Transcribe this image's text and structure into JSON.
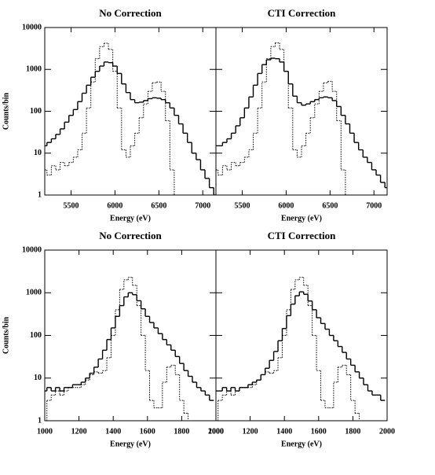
{
  "chart_data": [
    {
      "type": "line",
      "step": true,
      "log_y": true,
      "title": "No Correction",
      "xlabel": "Energy (eV)",
      "ylabel": "Counts/bin",
      "ytick_labels": true,
      "xlim": [
        5200,
        7150
      ],
      "xticks": [
        5500,
        6000,
        6500,
        7000
      ],
      "ylim": [
        1,
        10000
      ],
      "yticks": [
        1,
        10,
        100,
        1000,
        10000
      ],
      "x": [
        5200,
        5250,
        5300,
        5350,
        5400,
        5450,
        5500,
        5550,
        5600,
        5650,
        5700,
        5750,
        5800,
        5850,
        5900,
        5950,
        6000,
        6050,
        6100,
        6150,
        6200,
        6250,
        6300,
        6350,
        6400,
        6450,
        6500,
        6550,
        6600,
        6650,
        6700,
        6750,
        6800,
        6850,
        6900,
        6950,
        7000,
        7050,
        7100,
        7150
      ],
      "series": [
        {
          "color": "#000000",
          "dash": "solid",
          "values": [
            15,
            18,
            22,
            28,
            38,
            55,
            80,
            110,
            170,
            270,
            420,
            650,
            900,
            1200,
            1500,
            1450,
            1200,
            800,
            450,
            280,
            190,
            160,
            165,
            180,
            200,
            210,
            205,
            190,
            160,
            120,
            80,
            50,
            30,
            18,
            10,
            7,
            4,
            2.5,
            1.5,
            1
          ]
        },
        {
          "color": "#000000",
          "dash": "dotted",
          "values": [
            4,
            3,
            5,
            4,
            6,
            5,
            6,
            8,
            12,
            30,
            120,
            500,
            1800,
            3500,
            4200,
            3000,
            900,
            120,
            12,
            8,
            15,
            30,
            70,
            150,
            300,
            480,
            500,
            300,
            60,
            4,
            1,
            null,
            null,
            null,
            null,
            null,
            null,
            null,
            null,
            null
          ]
        }
      ]
    },
    {
      "type": "line",
      "step": true,
      "log_y": true,
      "title": "CTI Correction",
      "xlabel": "Energy (eV)",
      "ytick_labels": false,
      "xlim": [
        5200,
        7150
      ],
      "xticks": [
        5500,
        6000,
        6500,
        7000
      ],
      "ylim": [
        1,
        10000
      ],
      "yticks": [
        1,
        10,
        100,
        1000,
        10000
      ],
      "x": [
        5200,
        5250,
        5300,
        5350,
        5400,
        5450,
        5500,
        5550,
        5600,
        5650,
        5700,
        5750,
        5800,
        5850,
        5900,
        5950,
        6000,
        6050,
        6100,
        6150,
        6200,
        6250,
        6300,
        6350,
        6400,
        6450,
        6500,
        6550,
        6600,
        6650,
        6700,
        6750,
        6800,
        6850,
        6900,
        6950,
        7000,
        7050,
        7100,
        7150
      ],
      "series": [
        {
          "color": "#000000",
          "dash": "solid",
          "values": [
            15,
            15,
            18,
            22,
            30,
            45,
            70,
            120,
            220,
            420,
            800,
            1300,
            1700,
            1850,
            1800,
            1500,
            900,
            450,
            230,
            160,
            140,
            150,
            170,
            190,
            210,
            220,
            210,
            180,
            130,
            80,
            50,
            30,
            18,
            12,
            8,
            6,
            4,
            3,
            2,
            1.5
          ]
        },
        {
          "color": "#000000",
          "dash": "dotted",
          "values": [
            4,
            3,
            5,
            4,
            6,
            5,
            6,
            8,
            12,
            30,
            120,
            500,
            1800,
            3500,
            4300,
            3000,
            900,
            120,
            12,
            8,
            15,
            30,
            70,
            150,
            300,
            480,
            520,
            300,
            60,
            4,
            1,
            null,
            null,
            null,
            null,
            null,
            null,
            null,
            null,
            null
          ]
        }
      ]
    },
    {
      "type": "line",
      "step": true,
      "log_y": true,
      "title": "No Correction",
      "xlabel": "Energy (eV)",
      "ylabel": "Counts/bin",
      "ytick_labels": true,
      "xlim": [
        1000,
        2000
      ],
      "xticks": [
        1000,
        1200,
        1400,
        1600,
        1800,
        2000
      ],
      "ylim": [
        1,
        10000
      ],
      "yticks": [
        1,
        10,
        100,
        1000,
        10000
      ],
      "x": [
        1000,
        1025,
        1050,
        1075,
        1100,
        1125,
        1150,
        1175,
        1200,
        1225,
        1250,
        1275,
        1300,
        1325,
        1350,
        1375,
        1400,
        1425,
        1450,
        1475,
        1500,
        1525,
        1550,
        1575,
        1600,
        1625,
        1650,
        1675,
        1700,
        1725,
        1750,
        1775,
        1800,
        1825,
        1850,
        1875,
        1900,
        1925,
        1950,
        1975
      ],
      "series": [
        {
          "color": "#000000",
          "dash": "solid",
          "values": [
            5,
            6,
            5,
            6,
            5,
            6,
            6,
            7,
            7,
            8,
            10,
            13,
            18,
            28,
            45,
            80,
            150,
            280,
            500,
            800,
            1000,
            900,
            650,
            420,
            280,
            200,
            150,
            110,
            80,
            60,
            45,
            32,
            22,
            15,
            11,
            8,
            6,
            5,
            4,
            3
          ]
        },
        {
          "color": "#000000",
          "dash": "dotted",
          "values": [
            1,
            3,
            4,
            5,
            4,
            5,
            6,
            6,
            6,
            7,
            9,
            12,
            14,
            13,
            15,
            30,
            100,
            400,
            1200,
            2000,
            2300,
            1500,
            500,
            100,
            15,
            3,
            2,
            2,
            8,
            18,
            20,
            12,
            3,
            1.5,
            1,
            null,
            null,
            null,
            null,
            null
          ]
        }
      ]
    },
    {
      "type": "line",
      "step": true,
      "log_y": true,
      "title": "CTI Correction",
      "xlabel": "Energy (eV)",
      "ytick_labels": false,
      "xlim": [
        1000,
        2000
      ],
      "xticks": [
        1000,
        1200,
        1400,
        1600,
        1800,
        2000
      ],
      "ylim": [
        1,
        10000
      ],
      "yticks": [
        1,
        10,
        100,
        1000,
        10000
      ],
      "x": [
        1000,
        1025,
        1050,
        1075,
        1100,
        1125,
        1150,
        1175,
        1200,
        1225,
        1250,
        1275,
        1300,
        1325,
        1350,
        1375,
        1400,
        1425,
        1450,
        1475,
        1500,
        1525,
        1550,
        1575,
        1600,
        1625,
        1650,
        1675,
        1700,
        1725,
        1750,
        1775,
        1800,
        1825,
        1850,
        1875,
        1900,
        1925,
        1950,
        1975
      ],
      "series": [
        {
          "color": "#000000",
          "dash": "solid",
          "values": [
            5,
            5,
            6,
            5,
            6,
            5,
            6,
            6,
            7,
            8,
            9,
            12,
            17,
            26,
            42,
            75,
            145,
            290,
            540,
            850,
            1050,
            920,
            640,
            400,
            260,
            190,
            140,
            100,
            75,
            55,
            40,
            28,
            20,
            14,
            10,
            7,
            5,
            4,
            4,
            3
          ]
        },
        {
          "color": "#000000",
          "dash": "dotted",
          "values": [
            1,
            3,
            4,
            5,
            4,
            5,
            6,
            6,
            6,
            7,
            9,
            12,
            14,
            13,
            15,
            30,
            100,
            400,
            1200,
            2000,
            2300,
            1500,
            500,
            100,
            15,
            3,
            2,
            2,
            8,
            18,
            20,
            12,
            3,
            1.5,
            1,
            null,
            null,
            null,
            null,
            null
          ]
        }
      ]
    }
  ]
}
